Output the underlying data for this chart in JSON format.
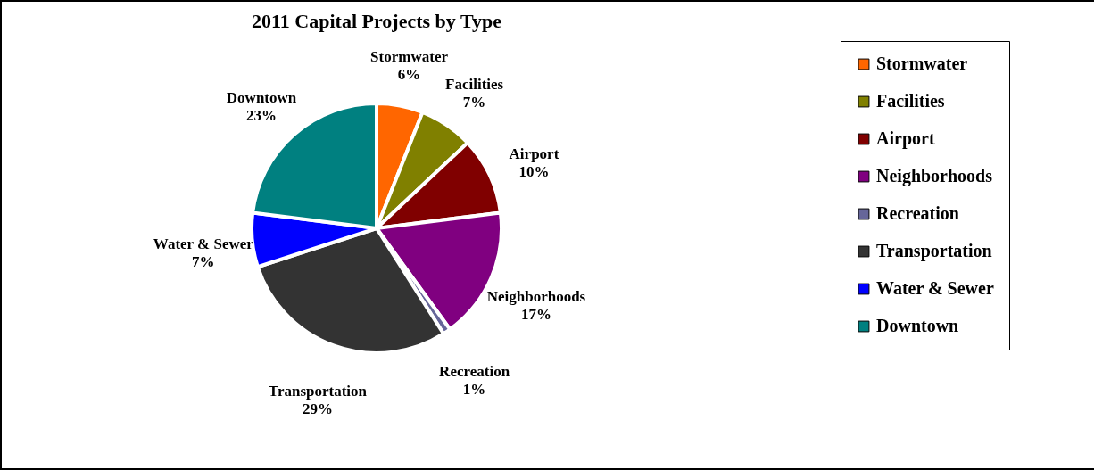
{
  "chart_data": {
    "type": "pie",
    "title": "2011 Capital Projects by Type",
    "categories": [
      "Stormwater",
      "Facilities",
      "Airport",
      "Neighborhoods",
      "Recreation",
      "Transportation",
      "Water & Sewer",
      "Downtown"
    ],
    "values": [
      6,
      7,
      10,
      17,
      1,
      29,
      7,
      23
    ],
    "colors": [
      "#ff6600",
      "#808000",
      "#800000",
      "#800080",
      "#666699",
      "#333333",
      "#0000ff",
      "#008080"
    ],
    "value_labels": [
      "6%",
      "7%",
      "10%",
      "17%",
      "1%",
      "29%",
      "7%",
      "23%"
    ],
    "legend": "right"
  }
}
